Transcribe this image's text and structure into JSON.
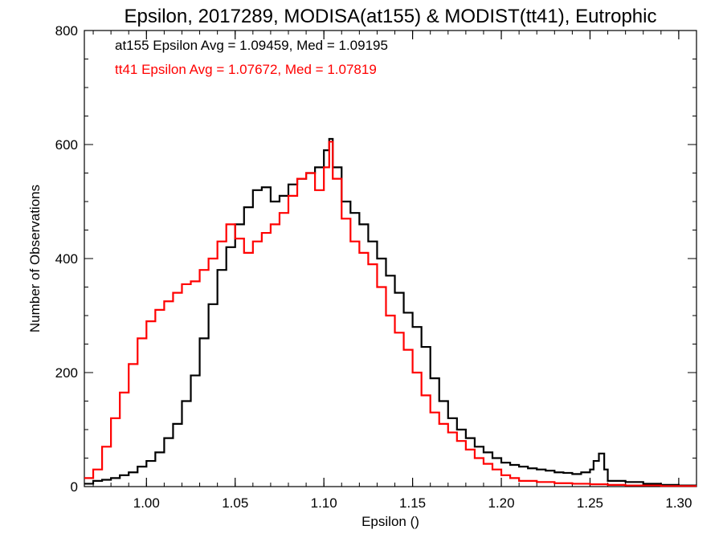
{
  "chart_data": {
    "type": "line",
    "title": "Epsilon, 2017289, MODISA(at155) & MODIST(tt41), Eutrophic",
    "xlabel": "Epsilon ()",
    "ylabel": "Number of Observations",
    "xlim": [
      0.965,
      1.31
    ],
    "ylim": [
      0,
      800
    ],
    "x_ticks": [
      1.0,
      1.05,
      1.1,
      1.15,
      1.2,
      1.25,
      1.3
    ],
    "x_tick_labels": [
      "1.00",
      "1.05",
      "1.10",
      "1.15",
      "1.20",
      "1.25",
      "1.30"
    ],
    "y_ticks": [
      0,
      200,
      400,
      600,
      800
    ],
    "y_tick_labels": [
      "0",
      "200",
      "400",
      "600",
      "800"
    ],
    "step_style": "histogram",
    "annotations": [
      {
        "text": "at155 Epsilon Avg = 1.09459, Med = 1.09195",
        "color": "#000000"
      },
      {
        "text": "tt41 Epsilon Avg = 1.07672, Med = 1.07819",
        "color": "#ff0000"
      }
    ],
    "series": [
      {
        "color": "#000000",
        "x": [
          0.965,
          0.97,
          0.975,
          0.98,
          0.985,
          0.99,
          0.995,
          1.0,
          1.005,
          1.01,
          1.015,
          1.02,
          1.025,
          1.03,
          1.035,
          1.04,
          1.045,
          1.05,
          1.055,
          1.06,
          1.065,
          1.07,
          1.075,
          1.08,
          1.085,
          1.09,
          1.095,
          1.1,
          1.103,
          1.105,
          1.11,
          1.115,
          1.12,
          1.125,
          1.13,
          1.135,
          1.14,
          1.145,
          1.15,
          1.155,
          1.16,
          1.165,
          1.17,
          1.175,
          1.18,
          1.185,
          1.19,
          1.195,
          1.2,
          1.205,
          1.21,
          1.215,
          1.22,
          1.225,
          1.23,
          1.235,
          1.24,
          1.245,
          1.25,
          1.252,
          1.255,
          1.258,
          1.26,
          1.27,
          1.28,
          1.29,
          1.3,
          1.31
        ],
        "y": [
          5,
          10,
          12,
          15,
          20,
          25,
          35,
          45,
          60,
          85,
          110,
          150,
          195,
          260,
          320,
          380,
          420,
          460,
          490,
          520,
          525,
          500,
          510,
          530,
          540,
          550,
          560,
          590,
          610,
          560,
          500,
          480,
          460,
          430,
          400,
          370,
          340,
          305,
          280,
          245,
          190,
          150,
          120,
          100,
          85,
          70,
          60,
          50,
          42,
          38,
          35,
          32,
          30,
          28,
          25,
          24,
          22,
          25,
          30,
          45,
          58,
          30,
          10,
          8,
          5,
          3,
          2,
          2
        ]
      },
      {
        "color": "#ff0000",
        "x": [
          0.965,
          0.97,
          0.975,
          0.98,
          0.985,
          0.99,
          0.995,
          1.0,
          1.005,
          1.01,
          1.015,
          1.02,
          1.025,
          1.03,
          1.035,
          1.04,
          1.045,
          1.05,
          1.055,
          1.06,
          1.065,
          1.07,
          1.075,
          1.08,
          1.085,
          1.09,
          1.095,
          1.1,
          1.103,
          1.105,
          1.11,
          1.115,
          1.12,
          1.125,
          1.13,
          1.135,
          1.14,
          1.145,
          1.15,
          1.155,
          1.16,
          1.165,
          1.17,
          1.175,
          1.18,
          1.185,
          1.19,
          1.195,
          1.2,
          1.205,
          1.21,
          1.22,
          1.23,
          1.24,
          1.25,
          1.26,
          1.27,
          1.28,
          1.29,
          1.3,
          1.31
        ],
        "y": [
          15,
          30,
          70,
          120,
          165,
          215,
          260,
          290,
          310,
          325,
          340,
          355,
          360,
          380,
          400,
          430,
          460,
          435,
          410,
          430,
          445,
          460,
          480,
          510,
          540,
          550,
          520,
          560,
          605,
          540,
          470,
          430,
          410,
          390,
          350,
          300,
          270,
          240,
          200,
          160,
          130,
          110,
          95,
          80,
          65,
          50,
          40,
          30,
          20,
          15,
          10,
          8,
          6,
          5,
          4,
          3,
          2,
          2,
          1,
          1,
          1
        ]
      }
    ]
  }
}
